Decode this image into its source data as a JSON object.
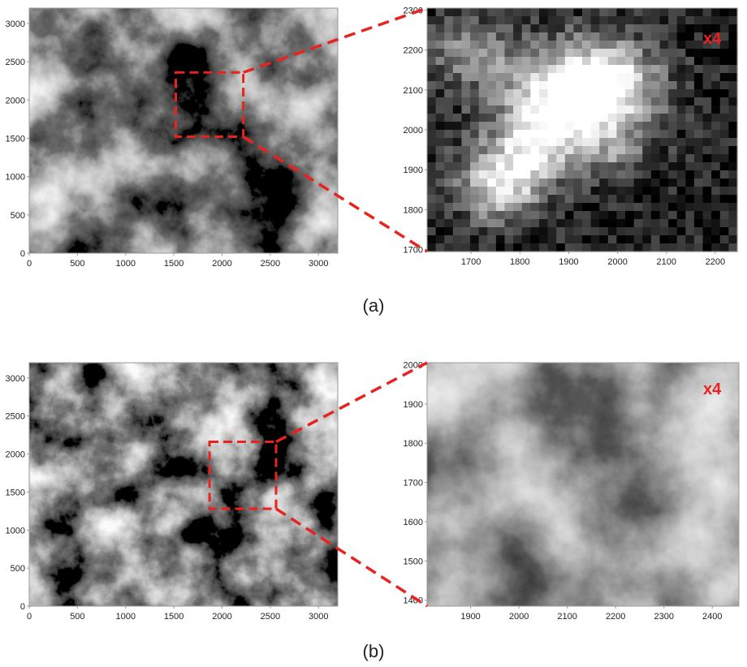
{
  "colors": {
    "accent": "#e8231f",
    "image_dark": "#000000",
    "image_light": "#ffffff"
  },
  "panels": [
    {
      "caption": "(a)",
      "overview": {
        "xlim": [
          0,
          3200
        ],
        "ylim": [
          0,
          3200
        ],
        "xticks": [
          "0",
          "500",
          "1000",
          "1500",
          "2000",
          "2500",
          "3000"
        ],
        "yticks": [
          "0",
          "500",
          "1000",
          "1500",
          "2000",
          "2500",
          "3000"
        ],
        "roi": {
          "x": [
            1520,
            2220
          ],
          "y": [
            1520,
            2360
          ]
        }
      },
      "zoom": {
        "label": "x4",
        "xlim": [
          1610,
          2245
        ],
        "ylim": [
          1695,
          2305
        ],
        "xticks": [
          "1700",
          "1800",
          "1900",
          "2000",
          "2100",
          "2200"
        ],
        "yticks": [
          "1700",
          "1800",
          "1900",
          "2000",
          "2100",
          "2200",
          "2300"
        ],
        "style": "pixelated"
      }
    },
    {
      "caption": "(b)",
      "overview": {
        "xlim": [
          0,
          3200
        ],
        "ylim": [
          0,
          3200
        ],
        "xticks": [
          "0",
          "500",
          "1000",
          "1500",
          "2000",
          "2500",
          "3000"
        ],
        "yticks": [
          "0",
          "500",
          "1000",
          "1500",
          "2000",
          "2500",
          "3000"
        ],
        "roi": {
          "x": [
            1870,
            2560
          ],
          "y": [
            1280,
            2160
          ]
        }
      },
      "zoom": {
        "label": "x4",
        "xlim": [
          1810,
          2455
        ],
        "ylim": [
          1385,
          2005
        ],
        "xticks": [
          "1900",
          "2000",
          "2100",
          "2200",
          "2300",
          "2400"
        ],
        "yticks": [
          "1400",
          "1500",
          "1600",
          "1700",
          "1800",
          "1900",
          "2000"
        ],
        "style": "smooth"
      }
    }
  ]
}
